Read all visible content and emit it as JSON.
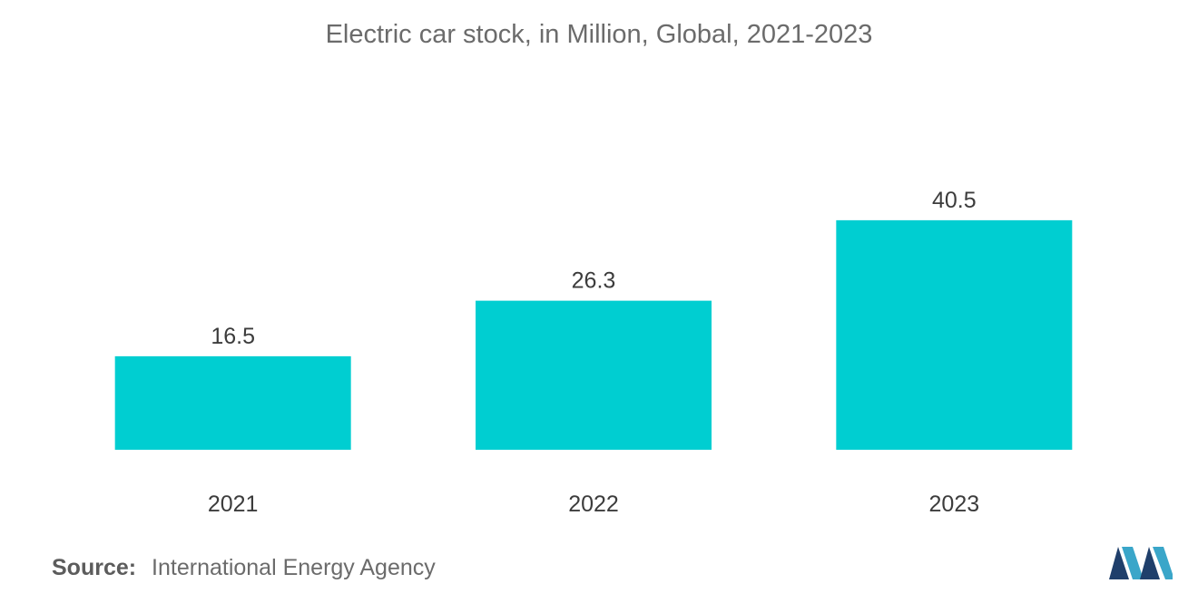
{
  "chart_data": {
    "type": "bar",
    "title": "Electric car stock, in Million, Global, 2021-2023",
    "categories": [
      "2021",
      "2022",
      "2023"
    ],
    "values": [
      16.5,
      26.3,
      40.5
    ],
    "value_labels": [
      "16.5",
      "26.3",
      "40.5"
    ],
    "xlabel": "",
    "ylabel": "",
    "ylim": [
      0,
      48
    ],
    "grid": false,
    "bar_color": "#00CED1"
  },
  "source": {
    "label": "Source:",
    "text": "International Energy Agency"
  },
  "logo": {
    "icon": "mordor-intelligence-logo-icon",
    "colors": [
      "#1f3f6b",
      "#3aa6c9"
    ]
  }
}
